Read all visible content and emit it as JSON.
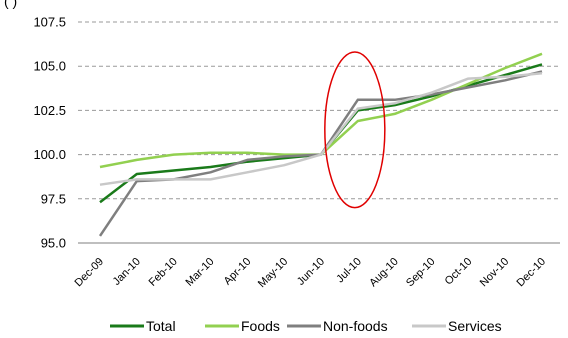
{
  "chart_data": {
    "type": "line",
    "title": "",
    "xlabel": "",
    "ylabel": "",
    "top_partial_text": "(                              )",
    "categories": [
      "Dec-09",
      "Jan-10",
      "Feb-10",
      "Mar-10",
      "Apr-10",
      "May-10",
      "Jun-10",
      "Jul-10",
      "Aug-10",
      "Sep-10",
      "Oct-10",
      "Nov-10",
      "Dec-10"
    ],
    "ylim": [
      95.0,
      107.5
    ],
    "yticks": [
      {
        "value": 95.0,
        "label": "95.0"
      },
      {
        "value": 97.5,
        "label": "97.5"
      },
      {
        "value": 100.0,
        "label": "100.0"
      },
      {
        "value": 102.5,
        "label": "102.5"
      },
      {
        "value": 105.0,
        "label": "105.0"
      },
      {
        "value": 107.5,
        "label": "107.5"
      }
    ],
    "grid": "horizontal dashed",
    "legend_position": "bottom",
    "series": [
      {
        "name": "Total",
        "color": "#1a7a1a",
        "values": [
          97.3,
          98.9,
          99.1,
          99.3,
          99.6,
          99.8,
          100.0,
          102.5,
          102.8,
          103.3,
          103.9,
          104.5,
          105.1
        ]
      },
      {
        "name": "Foods",
        "color": "#92d050",
        "values": [
          99.3,
          99.7,
          100.0,
          100.1,
          100.1,
          100.0,
          100.0,
          101.9,
          102.3,
          103.1,
          104.0,
          104.9,
          105.7
        ]
      },
      {
        "name": "Non-foods",
        "color": "#7f7f7f",
        "values": [
          95.4,
          98.5,
          98.6,
          99.0,
          99.7,
          99.9,
          100.0,
          103.1,
          103.1,
          103.4,
          103.8,
          104.2,
          104.7
        ]
      },
      {
        "name": "Services",
        "color": "#c8c8c8",
        "values": [
          98.3,
          98.6,
          98.6,
          98.6,
          99.0,
          99.4,
          100.0,
          102.6,
          102.9,
          103.5,
          104.3,
          104.4,
          104.6
        ]
      }
    ],
    "annotations": [
      {
        "type": "ellipse",
        "color": "#e00000",
        "around_category": "Jul-10",
        "y_range": [
          97.0,
          105.8
        ]
      }
    ]
  }
}
